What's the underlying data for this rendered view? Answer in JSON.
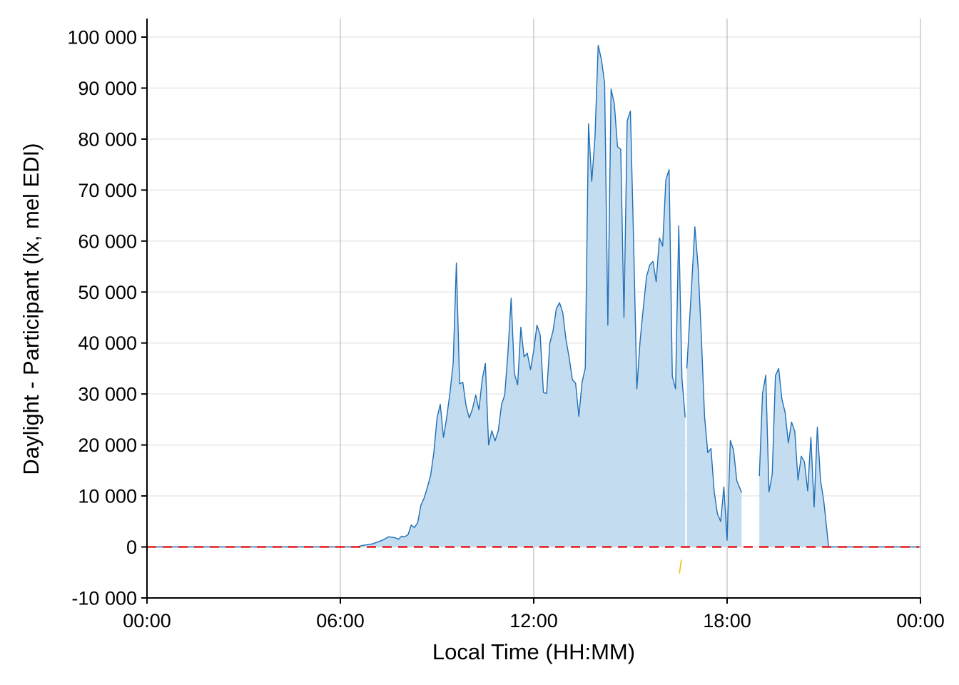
{
  "chart_data": {
    "type": "area",
    "xlabel": "Local Time (HH:MM)",
    "ylabel": "Daylight - Participant (lx, mel EDI)",
    "xlim": [
      0,
      24
    ],
    "ylim": [
      -10000,
      100000
    ],
    "x_ticks": [
      {
        "value": 0,
        "label": "00:00"
      },
      {
        "value": 6,
        "label": "06:00"
      },
      {
        "value": 12,
        "label": "12:00"
      },
      {
        "value": 18,
        "label": "18:00"
      },
      {
        "value": 24,
        "label": "00:00"
      }
    ],
    "y_ticks": [
      {
        "value": -10000,
        "label": "-10 000"
      },
      {
        "value": 0,
        "label": "0"
      },
      {
        "value": 10000,
        "label": "10 000"
      },
      {
        "value": 20000,
        "label": "20 000"
      },
      {
        "value": 30000,
        "label": "30 000"
      },
      {
        "value": 40000,
        "label": "40 000"
      },
      {
        "value": 50000,
        "label": "50 000"
      },
      {
        "value": 60000,
        "label": "60 000"
      },
      {
        "value": 70000,
        "label": "70 000"
      },
      {
        "value": 80000,
        "label": "80 000"
      },
      {
        "value": 90000,
        "label": "90 000"
      },
      {
        "value": 100000,
        "label": "100 000"
      }
    ],
    "grid": {
      "horizontal": true,
      "vertical_major": true
    },
    "reference_line": {
      "y": 0,
      "style": "dashed",
      "color": "#e41a1c"
    },
    "colors": {
      "line": "#1f6fb6",
      "fill": "#c3dcef",
      "negative": "#f2c100",
      "grid": "#eeeeee",
      "vgrid": "#bbbbbb"
    },
    "series": [
      {
        "segments": [
          {
            "x": [
              0.0,
              6.5,
              6.7,
              7.0,
              7.3,
              7.5,
              7.7,
              7.8,
              7.9,
              8.0,
              8.1,
              8.2,
              8.3,
              8.4,
              8.5,
              8.6,
              8.7,
              8.8,
              8.9,
              9.0,
              9.1,
              9.2,
              9.3,
              9.4,
              9.5,
              9.6,
              9.7,
              9.8,
              9.9,
              10.0,
              10.1,
              10.2,
              10.3,
              10.4,
              10.5,
              10.6,
              10.7,
              10.8,
              10.9,
              11.0,
              11.1,
              11.2,
              11.3,
              11.4,
              11.5,
              11.6,
              11.7,
              11.8,
              11.9,
              12.0,
              12.1,
              12.2,
              12.3,
              12.4,
              12.5,
              12.6,
              12.7,
              12.8,
              12.9,
              13.0,
              13.1,
              13.2,
              13.3,
              13.4,
              13.5,
              13.6,
              13.7,
              13.8,
              13.9,
              14.0,
              14.1,
              14.2,
              14.3,
              14.4,
              14.5,
              14.6,
              14.7,
              14.8,
              14.9,
              15.0,
              15.1,
              15.2,
              15.3,
              15.4,
              15.5,
              15.6,
              15.7,
              15.8,
              15.9,
              16.0,
              16.1,
              16.2,
              16.3,
              16.4,
              16.5,
              16.6,
              16.7
            ],
            "y": [
              0,
              0,
              300,
              600,
              1300,
              2000,
              1800,
              1500,
              2100,
              2000,
              2400,
              4300,
              3800,
              4800,
              8200,
              9600,
              11700,
              14000,
              18500,
              25300,
              28000,
              21500,
              25400,
              30200,
              36000,
              55700,
              32000,
              32300,
              27700,
              25300,
              27100,
              29800,
              26900,
              32800,
              36000,
              20000,
              22800,
              20800,
              22800,
              27900,
              29800,
              38200,
              48800,
              34000,
              31800,
              43100,
              37300,
              38000,
              34800,
              38500,
              43500,
              41600,
              30300,
              30100,
              40000,
              42400,
              46700,
              47900,
              46000,
              40700,
              37100,
              32800,
              32100,
              25600,
              32300,
              35100,
              83000,
              71700,
              80300,
              98400,
              95600,
              91000,
              43500,
              89800,
              87000,
              78500,
              78000,
              45000,
              83600,
              85500,
              59600,
              31000,
              40400,
              46900,
              53000,
              55300,
              56000,
              52000,
              60600,
              59000,
              72000,
              74000,
              33500,
              31000,
              63000,
              33000,
              25400
            ]
          },
          {
            "x": [
              16.75,
              16.9,
              17.0,
              17.1,
              17.2,
              17.3,
              17.4,
              17.5,
              17.6,
              17.7,
              17.8,
              17.9,
              18.0,
              18.1,
              18.2,
              18.3,
              18.45
            ],
            "y": [
              35000,
              51400,
              62800,
              55000,
              41400,
              25600,
              18500,
              19300,
              10800,
              6500,
              5000,
              11800,
              1300,
              20900,
              19000,
              13000,
              10700
            ]
          },
          {
            "x": [
              19.0,
              19.1,
              19.2,
              19.3,
              19.4,
              19.5,
              19.6,
              19.7,
              19.8,
              19.9,
              20.0,
              20.1,
              20.2,
              20.3,
              20.4,
              20.5,
              20.6,
              20.7,
              20.8,
              20.9,
              21.0,
              21.15,
              24.0
            ],
            "y": [
              13900,
              30100,
              33700,
              10800,
              14200,
              33600,
              35000,
              29000,
              26400,
              20400,
              24500,
              22700,
              13100,
              17800,
              16700,
              11000,
              21500,
              7800,
              23500,
              13000,
              9000,
              0,
              0
            ]
          }
        ],
        "negative": {
          "x": [
            16.52,
            16.58
          ],
          "y": [
            -5200,
            -2500
          ]
        }
      }
    ]
  }
}
